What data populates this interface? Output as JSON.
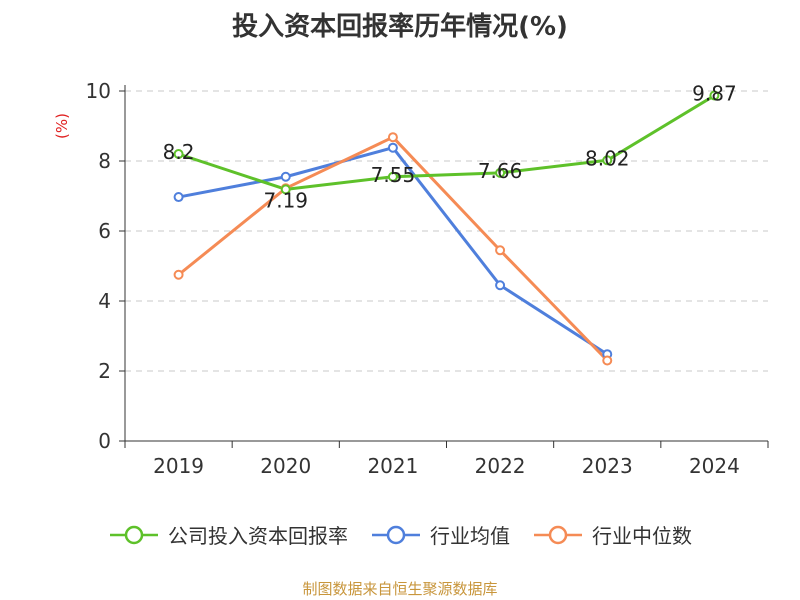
{
  "chart_data": {
    "type": "line",
    "title": "投入资本回报率历年情况(%)",
    "ylabel": "(%)",
    "categories": [
      "2019",
      "2020",
      "2021",
      "2022",
      "2023",
      "2024"
    ],
    "ylim": [
      0,
      10
    ],
    "yticks": [
      0,
      2,
      4,
      6,
      8,
      10
    ],
    "grid": true,
    "legend_position": "bottom",
    "series": [
      {
        "name": "公司投入资本回报率",
        "color": "#5ec12a",
        "values": [
          8.2,
          7.19,
          7.55,
          7.66,
          8.02,
          9.87
        ],
        "labels": [
          "8.2",
          "7.19",
          "7.55",
          "7.66",
          "8.02",
          "9.87"
        ]
      },
      {
        "name": "行业均值",
        "color": "#4f7fdc",
        "values": [
          6.97,
          7.55,
          8.38,
          4.45,
          2.48,
          null
        ]
      },
      {
        "name": "行业中位数",
        "color": "#f58b55",
        "values": [
          4.75,
          7.22,
          8.68,
          5.45,
          2.3,
          null
        ]
      }
    ]
  },
  "footer": "制图数据来自恒生聚源数据库",
  "ylabel_color": "#e02020"
}
